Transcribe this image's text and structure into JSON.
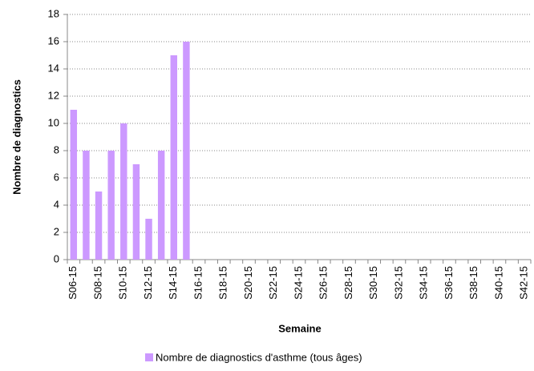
{
  "chart_data": {
    "type": "bar",
    "y_label": "Nombre de diagnostics",
    "x_label": "Semaine",
    "categories": [
      "S06-15",
      null,
      "S08-15",
      null,
      "S10-15",
      null,
      "S12-15",
      null,
      "S14-15",
      null,
      "S16-15",
      null,
      "S18-15",
      null,
      "S20-15",
      null,
      "S22-15",
      null,
      "S24-15",
      null,
      "S26-15",
      null,
      "S28-15",
      null,
      "S30-15",
      null,
      "S32-15",
      null,
      "S34-15",
      null,
      "S36-15",
      null,
      "S38-15",
      null,
      "S40-15",
      null,
      "S42-15"
    ],
    "series": [
      {
        "name": "Nombre de diagnostics d'asthme (tous âges)",
        "color": "#cc99ff",
        "values": [
          11,
          8,
          5,
          8,
          10,
          7,
          3,
          8,
          15,
          16,
          null,
          null,
          null,
          null,
          null,
          null,
          null,
          null,
          null,
          null,
          null,
          null,
          null,
          null,
          null,
          null,
          null,
          null,
          null,
          null,
          null,
          null,
          null,
          null,
          null,
          null,
          null
        ]
      }
    ],
    "ylim": [
      0,
      18
    ],
    "yticks": [
      0,
      2,
      4,
      6,
      8,
      10,
      12,
      14,
      16,
      18
    ],
    "grid": true,
    "legend": "bottom"
  }
}
